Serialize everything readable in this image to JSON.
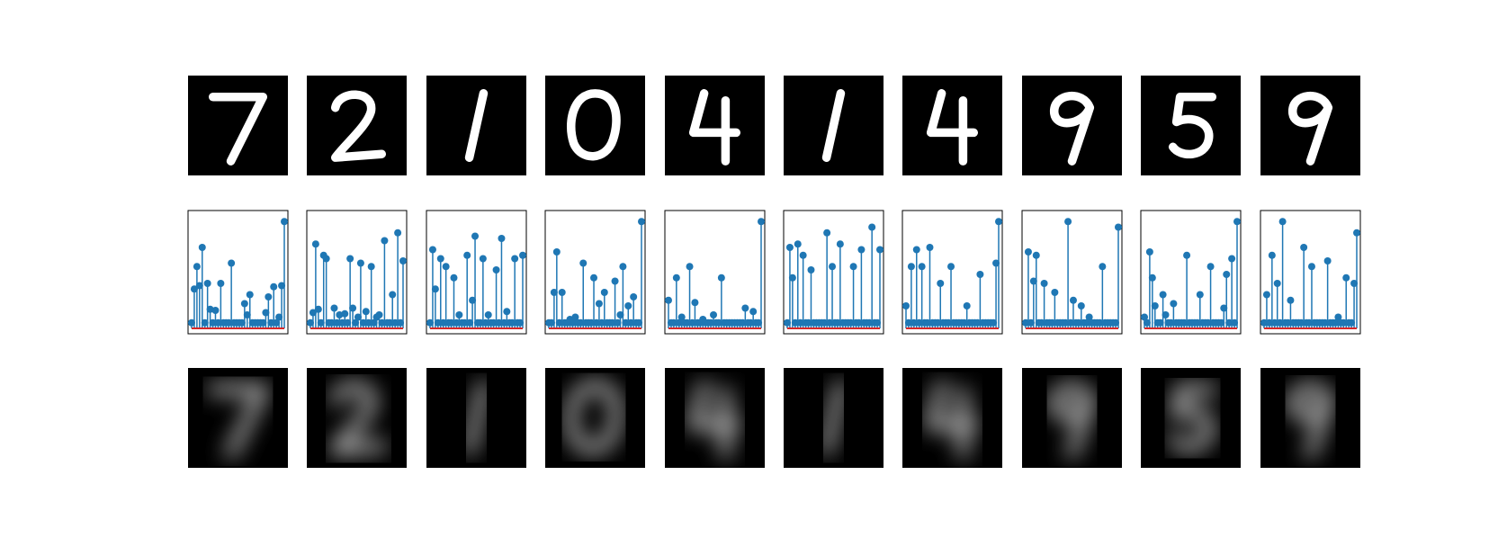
{
  "figure": {
    "background": "#ffffff",
    "panel_count": 10
  },
  "colors": {
    "stem": "#1f77b4",
    "baseline": "#d62728",
    "image_bg": "#000000",
    "axes_frame": "#000000"
  },
  "rows": [
    "original-images",
    "latent-code-stem-plots",
    "reconstructed-images"
  ],
  "chart_data": {
    "type": "stem",
    "xlabel": "",
    "ylabel": "",
    "grid": false,
    "ticks": "none",
    "panels": [
      {
        "digit": "7",
        "values": [
          0.05,
          0.35,
          0.55,
          0.38,
          0.72,
          0.05,
          0.4,
          0.17,
          0.05,
          0.16,
          0.05,
          0.4,
          0.05,
          0.05,
          0.05,
          0.58,
          0.05,
          0.05,
          0.05,
          0.05,
          0.22,
          0.12,
          0.3,
          0.05,
          0.05,
          0.05,
          0.05,
          0.05,
          0.14,
          0.28,
          0.05,
          0.37,
          0.05,
          0.1,
          0.38,
          0.95
        ]
      },
      {
        "digit": "2",
        "values": [
          0.05,
          0.14,
          0.75,
          0.17,
          0.05,
          0.65,
          0.62,
          0.05,
          0.05,
          0.18,
          0.05,
          0.12,
          0.05,
          0.13,
          0.05,
          0.62,
          0.18,
          0.05,
          0.1,
          0.58,
          0.05,
          0.15,
          0.05,
          0.55,
          0.05,
          0.1,
          0.12,
          0.05,
          0.78,
          0.05,
          0.05,
          0.3,
          0.05,
          0.85,
          0.05,
          0.6
        ]
      },
      {
        "digit": "1",
        "values": [
          0.05,
          0.7,
          0.35,
          0.05,
          0.62,
          0.05,
          0.55,
          0.05,
          0.05,
          0.45,
          0.05,
          0.12,
          0.05,
          0.05,
          0.65,
          0.05,
          0.25,
          0.82,
          0.05,
          0.05,
          0.62,
          0.05,
          0.12,
          0.05,
          0.05,
          0.52,
          0.05,
          0.8,
          0.05,
          0.15,
          0.05,
          0.05,
          0.62,
          0.05,
          0.05,
          0.65
        ]
      },
      {
        "digit": "0",
        "values": [
          0.05,
          0.05,
          0.32,
          0.68,
          0.05,
          0.32,
          0.05,
          0.05,
          0.08,
          0.05,
          0.1,
          0.05,
          0.05,
          0.58,
          0.05,
          0.05,
          0.05,
          0.45,
          0.05,
          0.22,
          0.05,
          0.32,
          0.05,
          0.05,
          0.05,
          0.42,
          0.05,
          0.12,
          0.55,
          0.05,
          0.2,
          0.05,
          0.28,
          0.05,
          0.05,
          0.95
        ]
      },
      {
        "digit": "4",
        "values": [
          0.25,
          0.05,
          0.05,
          0.45,
          0.05,
          0.1,
          0.05,
          0.05,
          0.55,
          0.05,
          0.23,
          0.05,
          0.05,
          0.08,
          0.05,
          0.05,
          0.05,
          0.12,
          0.05,
          0.05,
          0.45,
          0.05,
          0.05,
          0.05,
          0.05,
          0.05,
          0.05,
          0.05,
          0.05,
          0.18,
          0.05,
          0.05,
          0.15,
          0.05,
          0.05,
          0.95
        ]
      },
      {
        "digit": "1",
        "values": [
          0.05,
          0.72,
          0.45,
          0.05,
          0.75,
          0.05,
          0.65,
          0.05,
          0.05,
          0.52,
          0.05,
          0.05,
          0.05,
          0.05,
          0.05,
          0.85,
          0.05,
          0.55,
          0.05,
          0.05,
          0.75,
          0.05,
          0.05,
          0.05,
          0.05,
          0.55,
          0.05,
          0.05,
          0.7,
          0.05,
          0.05,
          0.05,
          0.9,
          0.05,
          0.05,
          0.7
        ]
      },
      {
        "digit": "4",
        "values": [
          0.2,
          0.05,
          0.55,
          0.05,
          0.7,
          0.05,
          0.55,
          0.05,
          0.05,
          0.72,
          0.05,
          0.05,
          0.05,
          0.4,
          0.05,
          0.05,
          0.05,
          0.55,
          0.05,
          0.05,
          0.05,
          0.05,
          0.05,
          0.2,
          0.05,
          0.05,
          0.05,
          0.05,
          0.48,
          0.05,
          0.05,
          0.05,
          0.05,
          0.05,
          0.58,
          0.95
        ]
      },
      {
        "digit": "9",
        "values": [
          0.05,
          0.68,
          0.05,
          0.42,
          0.65,
          0.05,
          0.05,
          0.4,
          0.05,
          0.05,
          0.05,
          0.32,
          0.05,
          0.05,
          0.05,
          0.05,
          0.95,
          0.05,
          0.25,
          0.05,
          0.05,
          0.2,
          0.05,
          0.05,
          0.1,
          0.05,
          0.05,
          0.05,
          0.05,
          0.55,
          0.05,
          0.05,
          0.05,
          0.05,
          0.05,
          0.9
        ]
      },
      {
        "digit": "5",
        "values": [
          0.1,
          0.05,
          0.68,
          0.45,
          0.2,
          0.05,
          0.05,
          0.3,
          0.12,
          0.05,
          0.05,
          0.22,
          0.05,
          0.05,
          0.05,
          0.05,
          0.65,
          0.05,
          0.05,
          0.05,
          0.05,
          0.3,
          0.05,
          0.05,
          0.05,
          0.55,
          0.05,
          0.05,
          0.05,
          0.05,
          0.18,
          0.48,
          0.05,
          0.62,
          0.05,
          0.95
        ]
      },
      {
        "digit": "9",
        "values": [
          0.05,
          0.3,
          0.05,
          0.65,
          0.05,
          0.4,
          0.05,
          0.95,
          0.05,
          0.05,
          0.25,
          0.05,
          0.05,
          0.05,
          0.05,
          0.72,
          0.05,
          0.05,
          0.55,
          0.05,
          0.05,
          0.05,
          0.05,
          0.05,
          0.6,
          0.05,
          0.05,
          0.05,
          0.1,
          0.05,
          0.05,
          0.45,
          0.05,
          0.05,
          0.4,
          0.85
        ]
      }
    ]
  }
}
